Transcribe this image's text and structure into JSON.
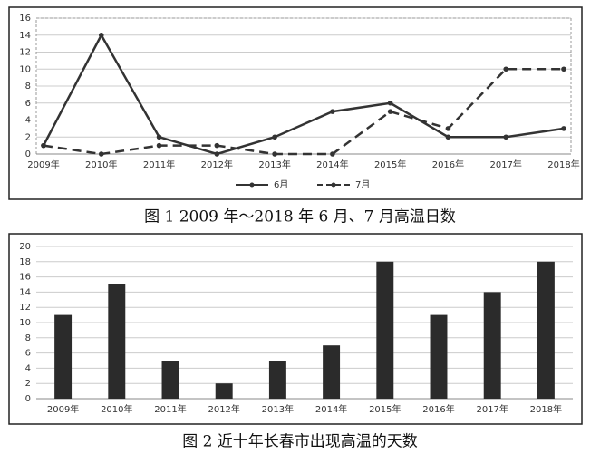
{
  "chart_data": [
    {
      "type": "line",
      "title": "图 1 2009 年～2018 年 6 月、7 月高温日数",
      "categories": [
        "2009年",
        "2010年",
        "2011年",
        "2012年",
        "2013年",
        "2014年",
        "2015年",
        "2016年",
        "2017年",
        "2018年"
      ],
      "series": [
        {
          "name": "6月",
          "color": "#333333",
          "dash": false,
          "values": [
            1,
            14,
            2,
            0,
            2,
            5,
            6,
            2,
            2,
            3
          ]
        },
        {
          "name": "7月",
          "color": "#333333",
          "dash": true,
          "values": [
            1,
            0,
            1,
            1,
            0,
            0,
            5,
            3,
            10,
            10
          ]
        }
      ],
      "ylim": [
        0,
        16
      ],
      "yticks": [
        0,
        2,
        4,
        6,
        8,
        10,
        12,
        14,
        16
      ],
      "grid": true,
      "legend": "bottom"
    },
    {
      "type": "bar",
      "title": "图 2 近十年长春市出现高温的天数",
      "categories": [
        "2009年",
        "2010年",
        "2011年",
        "2012年",
        "2013年",
        "2014年",
        "2015年",
        "2016年",
        "2017年",
        "2018年"
      ],
      "values": [
        11,
        15,
        5,
        2,
        5,
        7,
        18,
        11,
        14,
        18
      ],
      "color": "#2b2b2b",
      "ylim": [
        0,
        20
      ],
      "yticks": [
        0,
        2,
        4,
        6,
        8,
        10,
        12,
        14,
        16,
        18,
        20
      ],
      "grid": true
    }
  ]
}
